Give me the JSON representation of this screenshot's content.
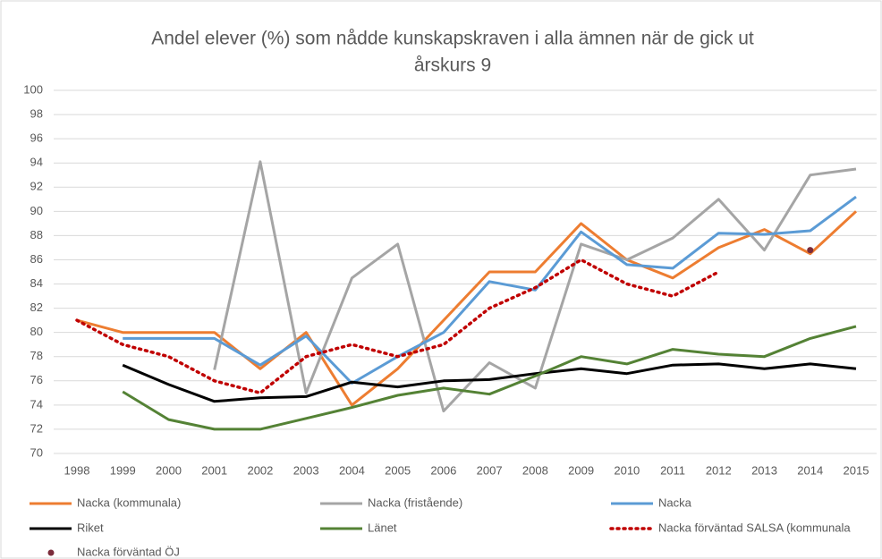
{
  "chart_data": {
    "type": "line",
    "title": [
      "Andel elever (%) som nådde kunskapskraven i alla ämnen när de gick ut",
      "årskurs 9"
    ],
    "categories": [
      "1998",
      "1999",
      "2000",
      "2001",
      "2002",
      "2003",
      "2004",
      "2005",
      "2006",
      "2007",
      "2008",
      "2009",
      "2010",
      "2011",
      "2012",
      "2013",
      "2014",
      "2015"
    ],
    "ylim": [
      70,
      100
    ],
    "yticks": [
      70,
      72,
      74,
      76,
      78,
      80,
      82,
      84,
      86,
      88,
      90,
      92,
      94,
      96,
      98,
      100
    ],
    "grid": true,
    "series": [
      {
        "name": "Nacka (kommunala)",
        "color": "#ed7d31",
        "values": [
          81,
          80,
          80,
          80,
          77,
          80,
          74,
          77,
          81,
          85,
          85,
          89,
          86,
          84.5,
          87,
          88.5,
          86.5,
          90
        ]
      },
      {
        "name": "Nacka (fristående)",
        "color": "#a5a5a5",
        "values": [
          null,
          null,
          null,
          76.9,
          94.1,
          75,
          84.5,
          87.3,
          73.5,
          77.5,
          75.4,
          87.3,
          86,
          87.8,
          91,
          86.8,
          93,
          93.5
        ]
      },
      {
        "name": "Nacka",
        "color": "#5b9bd5",
        "values": [
          null,
          79.5,
          79.5,
          79.5,
          77.3,
          79.7,
          75.8,
          78,
          80,
          84.2,
          83.5,
          88.3,
          85.6,
          85.3,
          88.2,
          88.1,
          88.4,
          91.2
        ]
      },
      {
        "name": "Riket",
        "color": "#000000",
        "values": [
          null,
          77.3,
          75.7,
          74.3,
          74.6,
          74.7,
          75.9,
          75.5,
          76,
          76.1,
          76.6,
          77,
          76.6,
          77.3,
          77.4,
          77,
          77.4,
          77
        ]
      },
      {
        "name": "Länet",
        "color": "#548235",
        "values": [
          null,
          75.1,
          72.8,
          72,
          72,
          72.9,
          73.8,
          74.8,
          75.4,
          74.9,
          76.4,
          78,
          77.4,
          78.6,
          78.2,
          78,
          79.5,
          80.5
        ]
      },
      {
        "name": "Nacka förväntad SALSA (kommunala",
        "color": "#c00000",
        "dashed": true,
        "values": [
          81,
          79,
          78,
          76,
          75,
          78,
          79,
          78,
          79,
          82,
          83.7,
          86,
          84,
          83,
          85,
          null,
          null,
          null
        ]
      },
      {
        "name": "Nacka förväntad ÖJ",
        "color": "#7b2c3b",
        "marker": true,
        "values": [
          null,
          null,
          null,
          null,
          null,
          null,
          null,
          null,
          null,
          null,
          null,
          null,
          null,
          null,
          null,
          null,
          86.8,
          null
        ]
      }
    ]
  }
}
